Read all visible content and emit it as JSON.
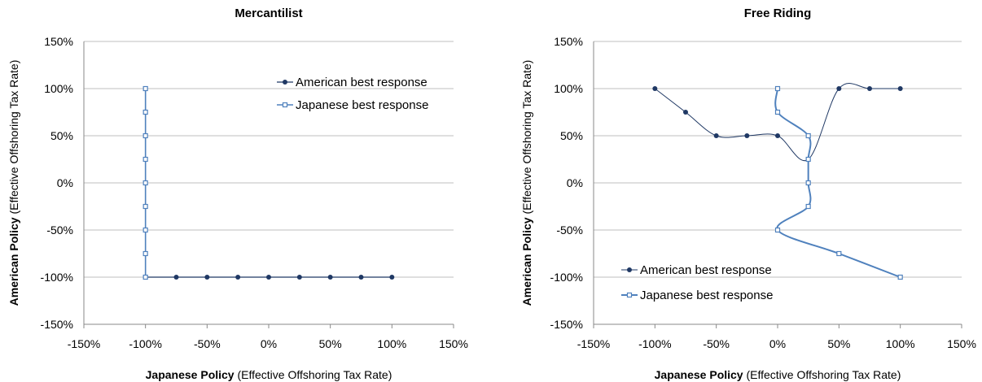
{
  "colors": {
    "american": "#1f3864",
    "japanese": "#4f81bd",
    "grid": "#bfbfbf"
  },
  "chart_data": [
    {
      "type": "line",
      "title": "Mercantilist",
      "xlabel_bold": "Japanese Policy",
      "xlabel_rest": " (Effective Offshoring Tax Rate)",
      "ylabel_bold": "American Policy",
      "ylabel_rest": " (Effective Offshoring Tax Rate)",
      "xlim": [
        -150,
        150
      ],
      "ylim": [
        -150,
        150
      ],
      "x_ticks": [
        "-150%",
        "-100%",
        "-50%",
        "0%",
        "50%",
        "100%",
        "150%"
      ],
      "y_ticks": [
        "150%",
        "100%",
        "50%",
        "0%",
        "-50%",
        "-100%",
        "-150%"
      ],
      "legend_position": "top-right",
      "series": [
        {
          "name": "American best response",
          "marker": "filled-circle",
          "x": [
            -100,
            -75,
            -50,
            -25,
            0,
            25,
            50,
            75,
            100
          ],
          "y": [
            -100,
            -100,
            -100,
            -100,
            -100,
            -100,
            -100,
            -100,
            -100
          ]
        },
        {
          "name": "Japanese best response",
          "marker": "open-square",
          "x": [
            -100,
            -100,
            -100,
            -100,
            -100,
            -100,
            -100,
            -100,
            -100
          ],
          "y": [
            100,
            75,
            50,
            25,
            0,
            -25,
            -50,
            -75,
            -100
          ]
        }
      ]
    },
    {
      "type": "line",
      "title": "Free Riding",
      "xlabel_bold": "Japanese Policy",
      "xlabel_rest": " (Effective Offshoring Tax Rate)",
      "ylabel_bold": "American Policy",
      "ylabel_rest": " (Effective Offshoring Tax Rate)",
      "xlim": [
        -150,
        150
      ],
      "ylim": [
        -150,
        150
      ],
      "x_ticks": [
        "-150%",
        "-100%",
        "-50%",
        "0%",
        "50%",
        "100%",
        "150%"
      ],
      "y_ticks": [
        "150%",
        "100%",
        "50%",
        "0%",
        "-50%",
        "-100%",
        "-150%"
      ],
      "legend_position": "bottom-left",
      "series": [
        {
          "name": "American best response",
          "marker": "filled-circle",
          "x": [
            -100,
            -75,
            -50,
            -25,
            0,
            25,
            50,
            75,
            100
          ],
          "y": [
            100,
            75,
            50,
            50,
            50,
            25,
            100,
            100,
            100
          ]
        },
        {
          "name": "Japanese best response",
          "marker": "open-square",
          "x": [
            0,
            0,
            25,
            25,
            25,
            25,
            0,
            50,
            100
          ],
          "y": [
            100,
            75,
            50,
            25,
            0,
            -25,
            -50,
            -75,
            -100
          ]
        }
      ]
    }
  ]
}
